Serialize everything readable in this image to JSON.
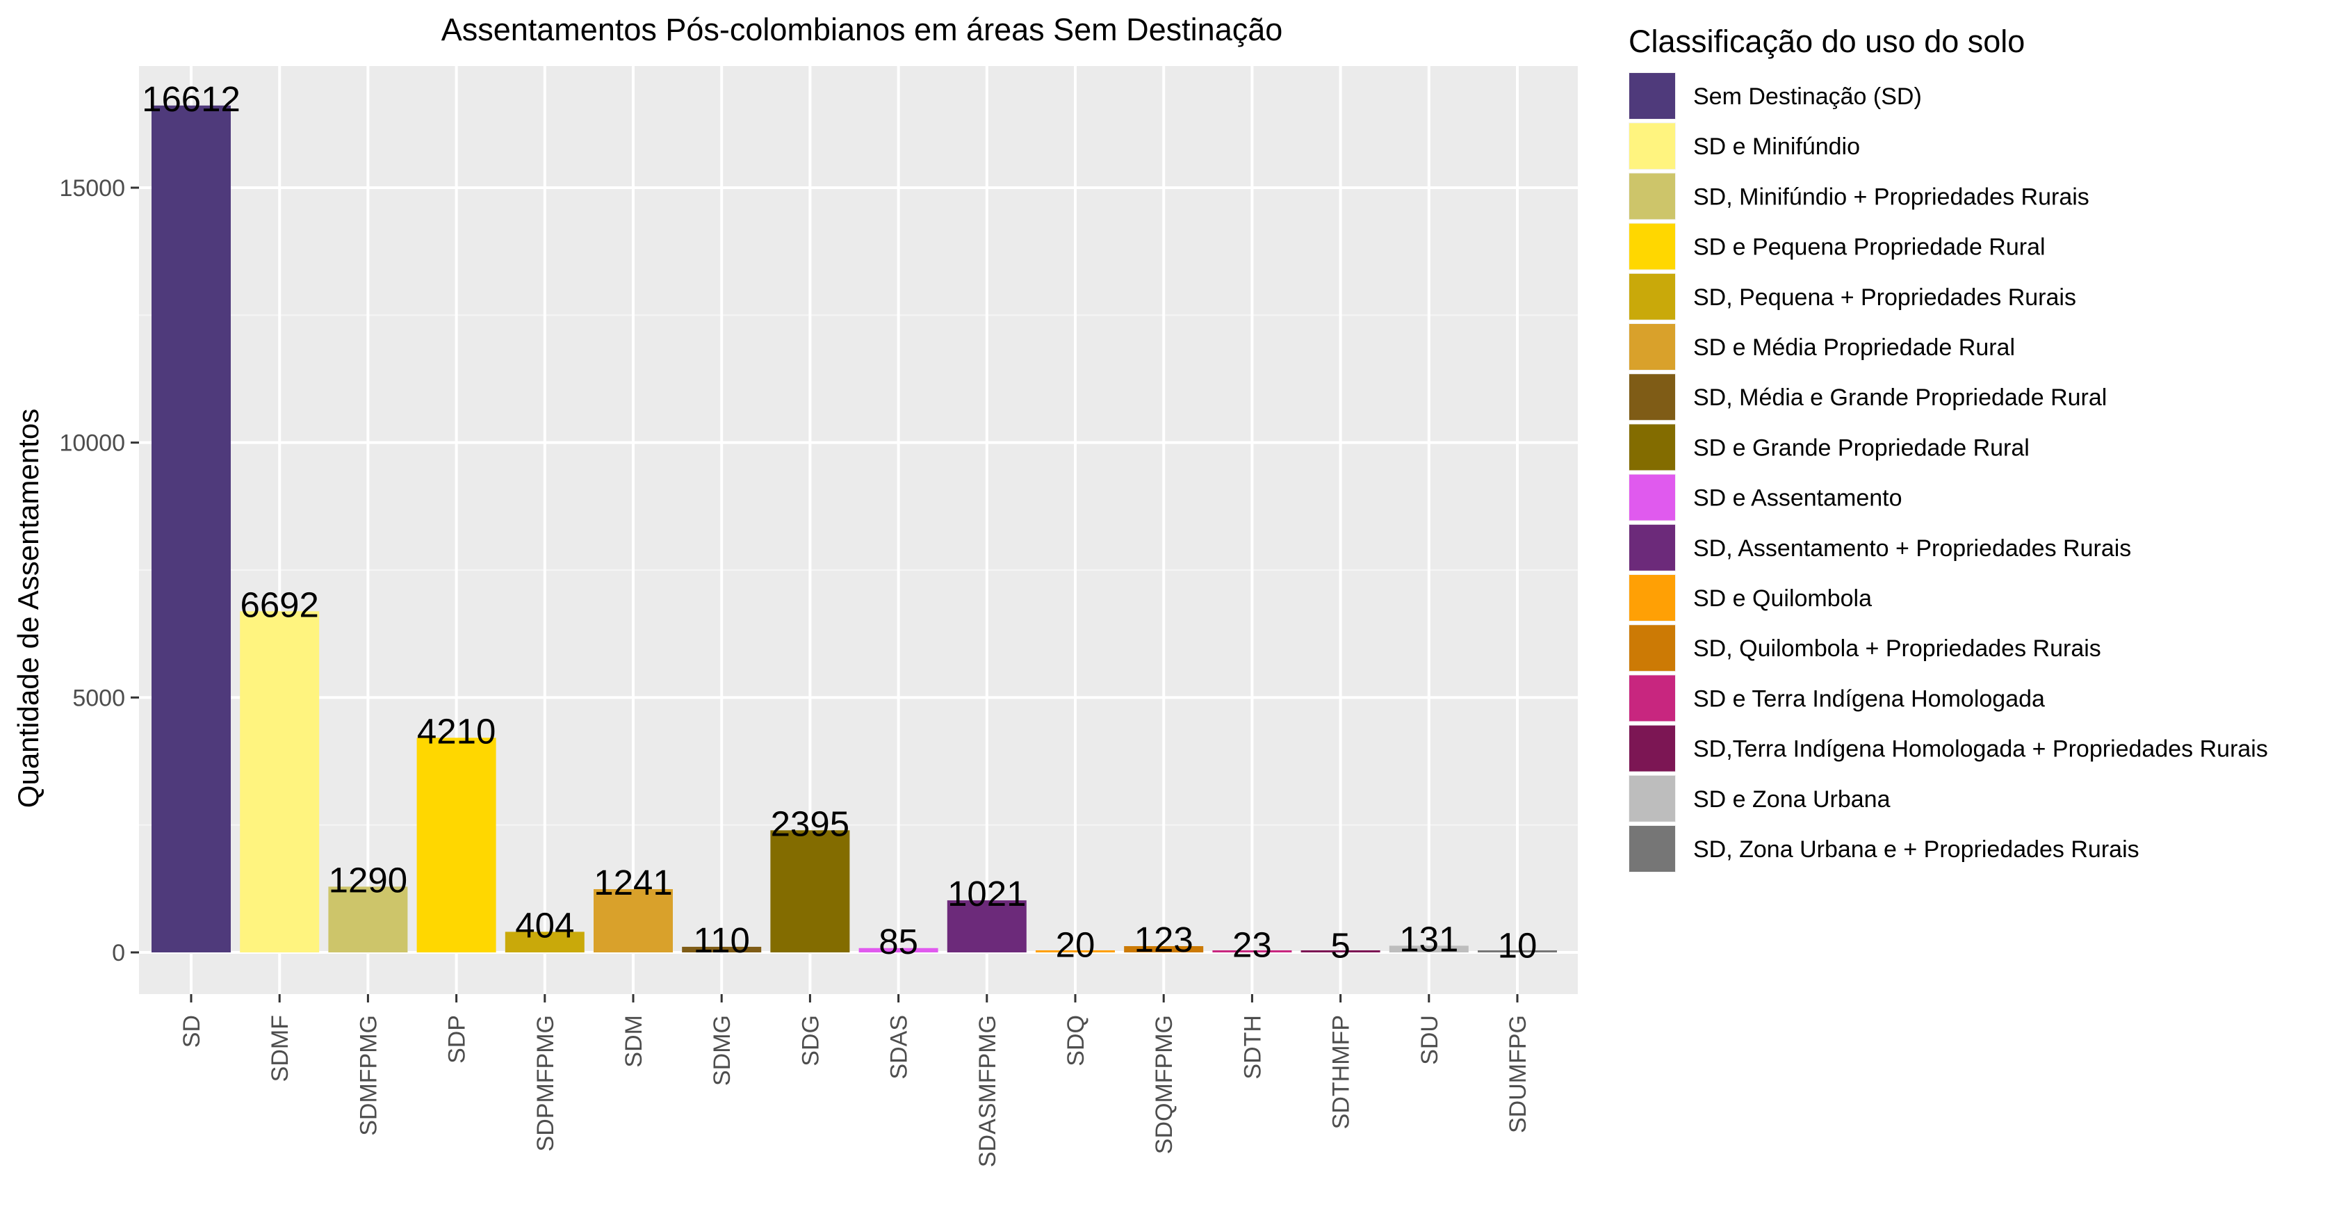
{
  "chart_data": {
    "type": "bar",
    "title": "Assentamentos Pós-colombianos em áreas Sem Destinação",
    "xlabel": "",
    "ylabel": "Quantidade de Assentamentos",
    "ylim": [
      0,
      17500
    ],
    "yticks": [
      0,
      5000,
      10000,
      15000
    ],
    "grid": true,
    "legend_position": "right",
    "legend_title": "Classificação do uso do solo",
    "categories": [
      "SD",
      "SDMF",
      "SDMFPMG",
      "SDP",
      "SDPMFPMG",
      "SDM",
      "SDMG",
      "SDG",
      "SDAS",
      "SDASMFPMG",
      "SDQ",
      "SDQMFPMG",
      "SDTH",
      "SDTHMFP",
      "SDU",
      "SDUMFPG"
    ],
    "values": [
      16612,
      6692,
      1290,
      4210,
      404,
      1241,
      110,
      2395,
      85,
      1021,
      20,
      123,
      23,
      5,
      131,
      10
    ],
    "colors": [
      "#4f3a7b",
      "#fff47f",
      "#cdc56a",
      "#ffd700",
      "#c9a90a",
      "#d9a12b",
      "#7f5c16",
      "#836c00",
      "#e05aee",
      "#6c2a7a",
      "#ffa005",
      "#cc7a05",
      "#c8267f",
      "#7c1654",
      "#bdbdbd",
      "#767676"
    ],
    "legend": [
      {
        "label": "Sem Destinação (SD)",
        "color": "#4f3a7b"
      },
      {
        "label": "SD e Minifúndio",
        "color": "#fff47f"
      },
      {
        "label": "SD, Minifúndio + Propriedades Rurais",
        "color": "#cdc56a"
      },
      {
        "label": "SD e Pequena Propriedade Rural",
        "color": "#ffd700"
      },
      {
        "label": "SD, Pequena + Propriedades Rurais",
        "color": "#c9a90a"
      },
      {
        "label": "SD e Média Propriedade Rural",
        "color": "#d9a12b"
      },
      {
        "label": "SD, Média e Grande Propriedade Rural",
        "color": "#7f5c16"
      },
      {
        "label": "SD e Grande Propriedade Rural",
        "color": "#836c00"
      },
      {
        "label": "SD e Assentamento",
        "color": "#e05aee"
      },
      {
        "label": "SD, Assentamento + Propriedades Rurais",
        "color": "#6c2a7a"
      },
      {
        "label": "SD e Quilombola",
        "color": "#ffa005"
      },
      {
        "label": "SD, Quilombola + Propriedades Rurais",
        "color": "#cc7a05"
      },
      {
        "label": "SD e Terra Indígena Homologada",
        "color": "#c8267f"
      },
      {
        "label": "SD,Terra Indígena Homologada + Propriedades Rurais",
        "color": "#7c1654"
      },
      {
        "label": "SD e Zona Urbana",
        "color": "#bdbdbd"
      },
      {
        "label": "SD, Zona Urbana e + Propriedades Rurais",
        "color": "#767676"
      }
    ]
  }
}
